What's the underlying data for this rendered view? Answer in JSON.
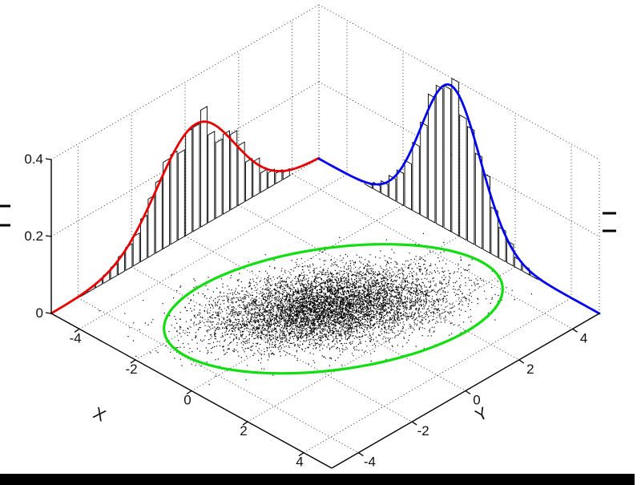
{
  "figure": {
    "background": "#ffffff",
    "border_color": "#000000"
  },
  "chart_data": {
    "type": "scatter",
    "subtype": "3d-bivariate-gaussian-scatter-with-marginal-histograms-and-confidence-ellipse",
    "title": "",
    "view": "matlab-default-3d",
    "axes": {
      "x": {
        "label": "X",
        "range": [
          -5,
          5
        ],
        "ticks": [
          -4,
          -2,
          0,
          2,
          4
        ],
        "tick_labels": [
          "-4",
          "-2",
          "0",
          "2",
          "4"
        ]
      },
      "y": {
        "label": "Y",
        "range": [
          -5,
          5
        ],
        "ticks": [
          -4,
          -2,
          0,
          2,
          4
        ],
        "tick_labels": [
          "-4",
          "-2",
          "0",
          "2",
          "4"
        ]
      },
      "z": {
        "label": "",
        "range": [
          0,
          0.4
        ],
        "ticks": [
          0,
          0.2,
          0.4
        ],
        "tick_labels": [
          "0",
          "0.2",
          "0.4"
        ]
      }
    },
    "grid": {
      "visible": true,
      "style": "dotted",
      "color": "#2b2b2b"
    },
    "scatter": {
      "n": 7000,
      "mean_x": -0.15,
      "mean_y": 0.25,
      "sigma_x": 1.05,
      "sigma_y": 1.45,
      "rho": 0.5,
      "color": "#000000",
      "seed": 1234
    },
    "ellipse": {
      "center_x": 0,
      "center_y": 0.3,
      "semi_major": 4.55,
      "semi_minor": 2.7,
      "angle_deg": 64,
      "color": "#11dd11"
    },
    "marginal_left_wall": {
      "axis": "y",
      "wall": "x=-5",
      "curve_color": "#e60000",
      "mu": 0.4,
      "sigma": 1.45,
      "peak_density": 0.275,
      "bins": 28,
      "bin_start": -3.92,
      "bin_step": 0.28,
      "bar_fill": "#ffffff",
      "bar_stroke": "#000000"
    },
    "marginal_right_wall": {
      "axis": "x",
      "wall": "y=5",
      "curve_color": "#0000ee",
      "mu": -0.3,
      "sigma": 1.05,
      "peak_density": 0.38,
      "bins": 28,
      "bin_start": -3.92,
      "bin_step": 0.28,
      "bar_fill": "#ffffff",
      "bar_stroke": "#000000"
    }
  }
}
